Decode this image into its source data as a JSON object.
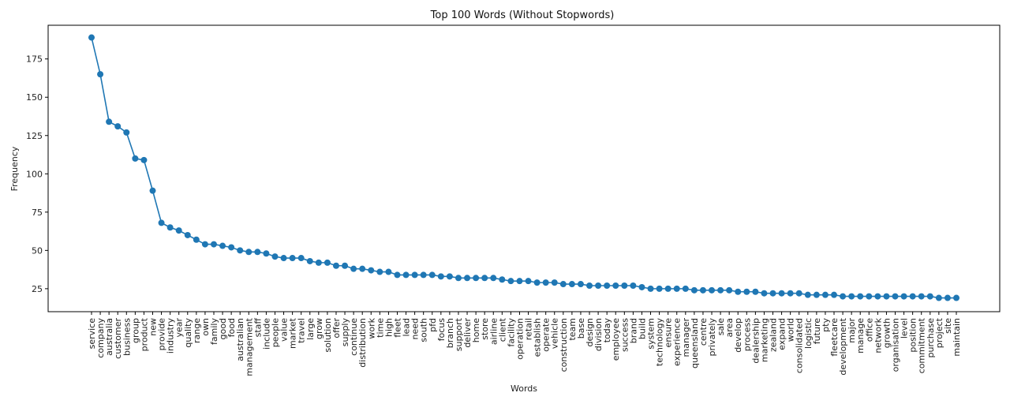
{
  "chart_data": {
    "type": "line",
    "title": "Top 100 Words (Without Stopwords)",
    "xlabel": "Words",
    "ylabel": "Frequency",
    "ylim": [
      10,
      197
    ],
    "yticks": [
      25,
      50,
      75,
      100,
      125,
      150,
      175
    ],
    "marker": "circle",
    "grid": false,
    "line_color": "#1f77b4",
    "categories": [
      "service",
      "company",
      "australia",
      "customer",
      "business",
      "group",
      "product",
      "new",
      "provide",
      "industry",
      "year",
      "quality",
      "range",
      "own",
      "family",
      "good",
      "food",
      "australian",
      "management",
      "staff",
      "include",
      "people",
      "value",
      "market",
      "travel",
      "large",
      "grow",
      "solution",
      "offer",
      "supply",
      "continue",
      "distribution",
      "work",
      "time",
      "high",
      "fleet",
      "lead",
      "need",
      "south",
      "pfd",
      "focus",
      "branch",
      "support",
      "deliver",
      "home",
      "store",
      "airline",
      "client",
      "facility",
      "operation",
      "retail",
      "establish",
      "operate",
      "vehicle",
      "construction",
      "team",
      "base",
      "design",
      "division",
      "today",
      "employee",
      "success",
      "brand",
      "build",
      "system",
      "technology",
      "ensure",
      "experience",
      "manager",
      "queensland",
      "centre",
      "privately",
      "sale",
      "area",
      "develop",
      "process",
      "dealership",
      "marketing",
      "zealand",
      "expand",
      "world",
      "consolidated",
      "logistic",
      "future",
      "pty",
      "fleetcare",
      "development",
      "major",
      "manage",
      "office",
      "network",
      "growth",
      "organisation",
      "level",
      "position",
      "commitment",
      "purchase",
      "project",
      "site",
      "maintain"
    ],
    "values": [
      189,
      165,
      134,
      131,
      127,
      110,
      109,
      89,
      68,
      65,
      63,
      60,
      57,
      54,
      54,
      53,
      52,
      50,
      49,
      49,
      48,
      46,
      45,
      45,
      45,
      43,
      42,
      42,
      40,
      40,
      38,
      38,
      37,
      36,
      36,
      34,
      34,
      34,
      34,
      34,
      33,
      33,
      32,
      32,
      32,
      32,
      32,
      31,
      30,
      30,
      30,
      29,
      29,
      29,
      28,
      28,
      28,
      27,
      27,
      27,
      27,
      27,
      27,
      26,
      25,
      25,
      25,
      25,
      25,
      24,
      24,
      24,
      24,
      24,
      23,
      23,
      23,
      22,
      22,
      22,
      22,
      22,
      21,
      21,
      21,
      21,
      20,
      20,
      20,
      20,
      20,
      20,
      20,
      20,
      20,
      20,
      20,
      19,
      19,
      19
    ]
  }
}
